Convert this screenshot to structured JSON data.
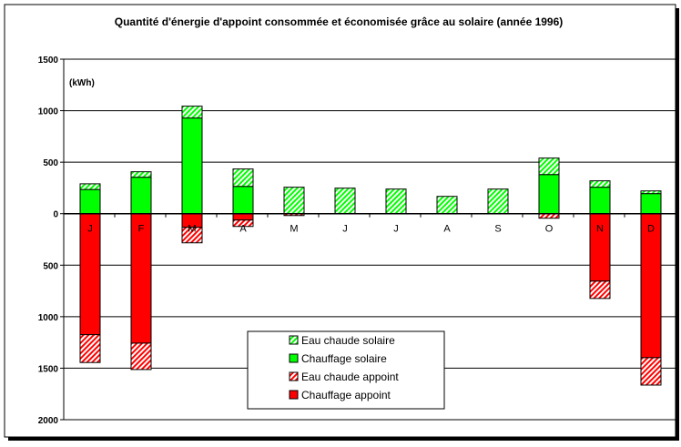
{
  "chart_data": {
    "type": "bar",
    "stacked": true,
    "title": "Quantité d'énergie d'appoint consommée et économisée grâce au solaire (année 1996)",
    "unit_label": "(kWh)",
    "categories": [
      "J",
      "F",
      "M",
      "A",
      "M",
      "J",
      "J",
      "A",
      "S",
      "O",
      "N",
      "D"
    ],
    "ylim": [
      -2000,
      1500
    ],
    "yticks": [
      1500,
      1000,
      500,
      0,
      -500,
      -1000,
      -1500,
      -2000
    ],
    "ytick_labels": [
      "1500",
      "1000",
      "500",
      "0",
      "500",
      "1000",
      "1500",
      "2000"
    ],
    "grid": true,
    "legend_placement": "bottom-center",
    "series": [
      {
        "name": "Eau chaude solaire",
        "color": "#00ff00",
        "hatched": true,
        "values": [
          55,
          53,
          115,
          169,
          257,
          248,
          239,
          168,
          239,
          160,
          62,
          26
        ]
      },
      {
        "name": "Chauffage solaire",
        "color": "#00ff00",
        "hatched": false,
        "values": [
          235,
          354,
          929,
          265,
          0,
          0,
          0,
          0,
          0,
          380,
          257,
          195
        ]
      },
      {
        "name": "Eau chaude appoint",
        "color": "#ff0000",
        "hatched": true,
        "values": [
          -270,
          -256,
          -150,
          -62,
          -18,
          0,
          0,
          0,
          0,
          -44,
          -168,
          -266
        ]
      },
      {
        "name": "Chauffage appoint",
        "color": "#ff0000",
        "hatched": false,
        "values": [
          -1175,
          -1257,
          -133,
          -62,
          0,
          0,
          0,
          0,
          0,
          0,
          -655,
          -1398
        ]
      }
    ]
  }
}
